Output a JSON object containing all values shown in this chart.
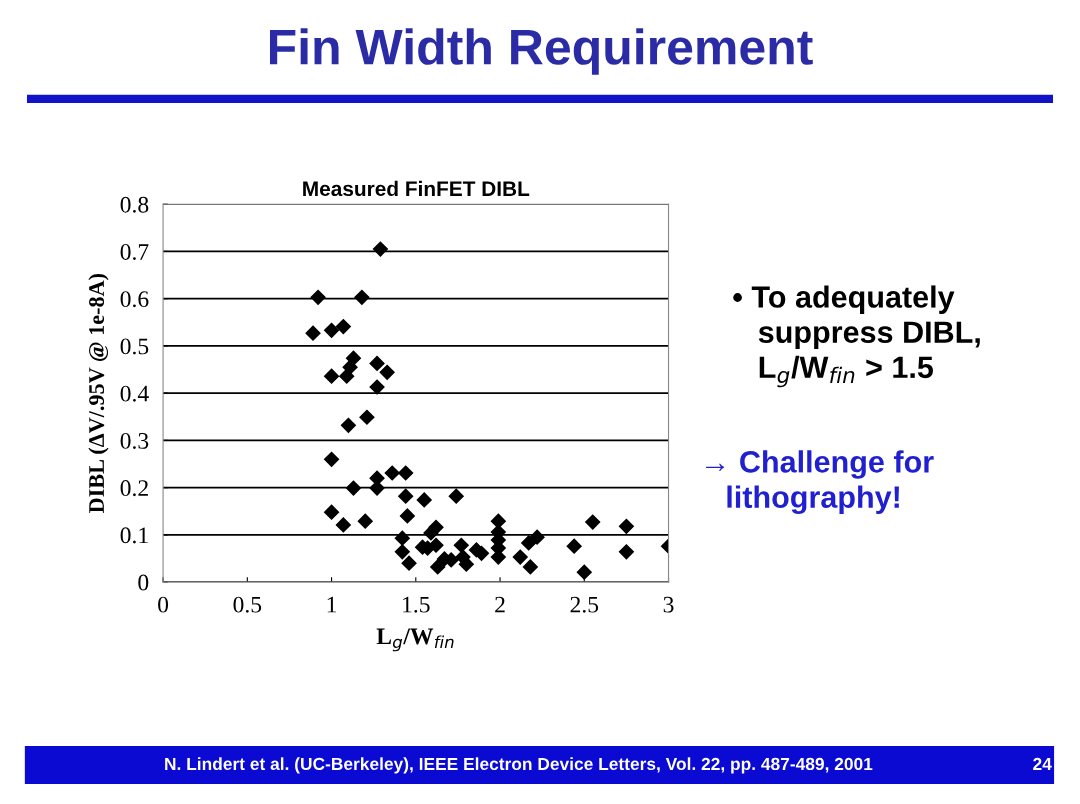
{
  "chart_data": {
    "type": "scatter",
    "title": "Fin Width Requirement",
    "subtitle": "Measured FinFET DIBL",
    "xlabel": "L$_{g}$/W$_{fin}$",
    "ylabel": "DIBL (ΔV/.95V @ 1e-8A)",
    "annotations": [
      "• To adequately\n   suppress DIBL,\n   L$_{g}$/W$_{fin}$ > 1.5",
      "→ Challenge for\n   lithography!",
      "N. Lindert et al. (UC-Berkeley), IEEE Electron Device Letters, Vol. 22, pp. 487-489, 2001",
      "24"
    ],
    "series": [
      {
        "color": "#000000",
        "x": [
          1.29,
          0.92,
          1.18,
          0.89,
          1.0,
          1.07,
          1.13,
          1.11,
          1.09,
          1.0,
          1.27,
          1.33,
          1.27,
          1.1,
          1.21,
          1.0,
          1.13,
          1.27,
          1.27,
          1.36,
          1.44,
          1.0,
          1.07,
          1.2,
          1.44,
          1.45,
          1.55,
          1.74,
          1.42,
          1.42,
          1.46,
          1.54,
          1.57,
          1.59,
          1.62,
          1.62,
          1.63,
          1.67,
          1.71,
          1.77,
          1.8,
          1.78,
          1.86,
          1.89,
          1.99,
          1.99,
          1.99,
          1.99,
          1.99,
          2.12,
          2.18,
          2.17,
          2.22,
          2.44,
          2.5,
          2.55,
          2.75,
          2.75,
          3.0
        ],
        "values": [
          0.705,
          0.603,
          0.603,
          0.527,
          0.533,
          0.541,
          0.474,
          0.455,
          0.436,
          0.436,
          0.463,
          0.444,
          0.413,
          0.332,
          0.349,
          0.26,
          0.199,
          0.22,
          0.199,
          0.231,
          0.231,
          0.148,
          0.121,
          0.129,
          0.182,
          0.14,
          0.174,
          0.182,
          0.093,
          0.064,
          0.04,
          0.074,
          0.072,
          0.104,
          0.116,
          0.078,
          0.032,
          0.049,
          0.047,
          0.078,
          0.038,
          0.053,
          0.068,
          0.061,
          0.129,
          0.106,
          0.089,
          0.072,
          0.053,
          0.053,
          0.032,
          0.083,
          0.095,
          0.076,
          0.021,
          0.127,
          0.118,
          0.064,
          0.076
        ]
      }
    ],
    "xlim": [
      0,
      3
    ],
    "xticks": [
      0,
      0.5,
      1,
      1.5,
      2,
      2.5,
      3
    ],
    "ylim": [
      0,
      0.8
    ],
    "yticks": [
      0,
      0.1,
      0.2,
      0.3,
      0.4,
      0.5,
      0.6,
      0.7,
      0.8
    ],
    "grid": "y",
    "marker": "diamond",
    "legend": false
  }
}
